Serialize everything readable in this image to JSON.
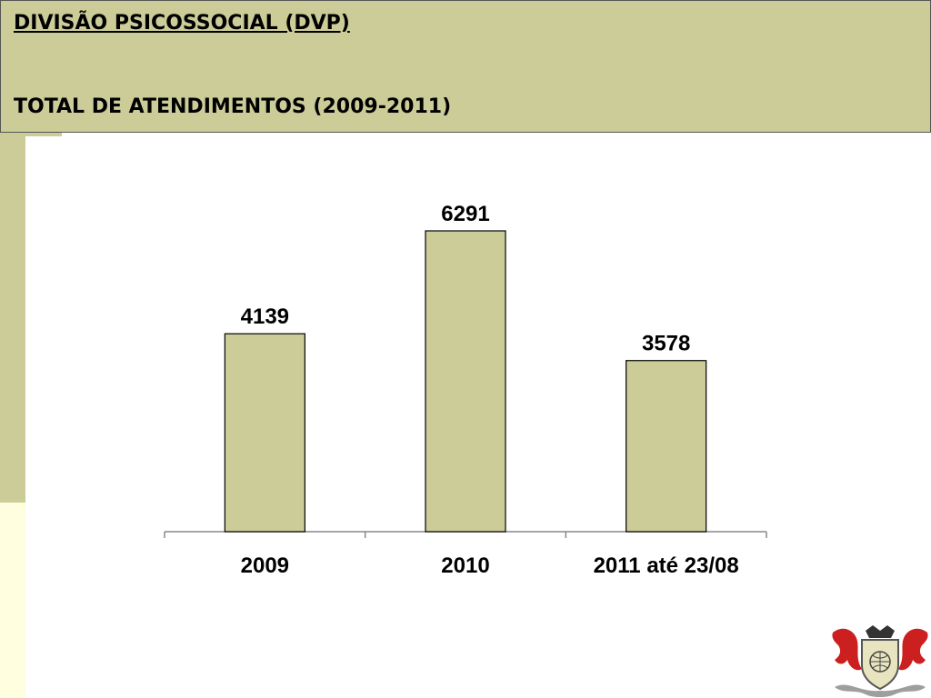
{
  "header": {
    "title": "DIVISÃO PSICOSSOCIAL (DVP)",
    "subtitle": "TOTAL DE ATENDIMENTOS (2009-2011)"
  },
  "colors": {
    "header_bg": "#cccc99",
    "bar_fill": "#cccc99",
    "bar_stroke": "#000000",
    "left_strip_bottom": "#ffffe0"
  },
  "chart_data": {
    "type": "bar",
    "categories": [
      "2009",
      "2010",
      "2011 até 23/08"
    ],
    "values": [
      4139,
      6291,
      3578
    ],
    "data_labels": [
      "4139",
      "6291",
      "3578"
    ],
    "ylim": [
      0,
      7000
    ],
    "grid": false,
    "legend": "none"
  },
  "emblem": {
    "icon": "coat-of-arms-icon"
  }
}
